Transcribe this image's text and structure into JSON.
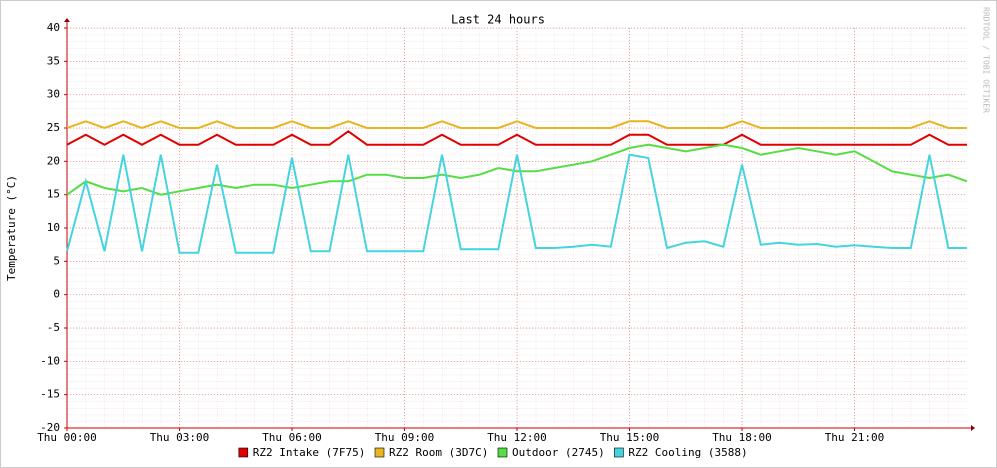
{
  "chart_data": {
    "type": "line",
    "title": "Last 24 hours",
    "y_label": "Temperature (°C)",
    "watermark": "RRDTOOL / TOBI OETIKER",
    "x": [
      0,
      0.5,
      1,
      1.5,
      2,
      2.5,
      3,
      3.5,
      4,
      4.5,
      5,
      5.5,
      6,
      6.5,
      7,
      7.5,
      8,
      8.5,
      9,
      9.5,
      10,
      10.5,
      11,
      11.5,
      12,
      12.5,
      13,
      13.5,
      14,
      14.5,
      15,
      15.5,
      16,
      16.5,
      17,
      17.5,
      18,
      18.5,
      19,
      19.5,
      20,
      20.5,
      21,
      21.5,
      22,
      22.5,
      23,
      23.5,
      24
    ],
    "xlim": [
      0,
      24
    ],
    "xticks": [
      {
        "value": 0,
        "label": "Thu 00:00"
      },
      {
        "value": 3,
        "label": "Thu 03:00"
      },
      {
        "value": 6,
        "label": "Thu 06:00"
      },
      {
        "value": 9,
        "label": "Thu 09:00"
      },
      {
        "value": 12,
        "label": "Thu 12:00"
      },
      {
        "value": 15,
        "label": "Thu 15:00"
      },
      {
        "value": 18,
        "label": "Thu 18:00"
      },
      {
        "value": 21,
        "label": "Thu 21:00"
      }
    ],
    "ylim": [
      -20,
      40
    ],
    "yticks": [
      -20,
      -15,
      -10,
      -5,
      0,
      5,
      10,
      15,
      20,
      25,
      30,
      35,
      40
    ],
    "grid": true,
    "series": [
      {
        "name": "RZ2 Intake (7F75)",
        "color": "#e00000",
        "values": [
          22.5,
          24,
          22.5,
          24,
          22.5,
          24,
          22.5,
          22.5,
          24,
          22.5,
          22.5,
          22.5,
          24,
          22.5,
          22.5,
          24.5,
          22.5,
          22.5,
          22.5,
          22.5,
          24,
          22.5,
          22.5,
          22.5,
          24,
          22.5,
          22.5,
          22.5,
          22.5,
          22.5,
          24,
          24,
          22.5,
          22.5,
          22.5,
          22.5,
          24,
          22.5,
          22.5,
          22.5,
          22.5,
          22.5,
          22.5,
          22.5,
          22.5,
          22.5,
          24,
          22.5,
          22.5
        ]
      },
      {
        "name": "RZ2 Room (3D7C)",
        "color": "#e8b420",
        "values": [
          25,
          26,
          25,
          26,
          25,
          26,
          25,
          25,
          26,
          25,
          25,
          25,
          26,
          25,
          25,
          26,
          25,
          25,
          25,
          25,
          26,
          25,
          25,
          25,
          26,
          25,
          25,
          25,
          25,
          25,
          26,
          26,
          25,
          25,
          25,
          25,
          26,
          25,
          25,
          25,
          25,
          25,
          25,
          25,
          25,
          25,
          26,
          25,
          25
        ]
      },
      {
        "name": "Outdoor (2745)",
        "color": "#55dd44",
        "values": [
          15,
          17,
          16,
          15.5,
          16,
          15,
          15.5,
          16,
          16.5,
          16,
          16.5,
          16.5,
          16,
          16.5,
          17,
          17,
          18,
          18,
          17.5,
          17.5,
          18,
          17.5,
          18,
          19,
          18.5,
          18.5,
          19,
          19.5,
          20,
          21,
          22,
          22.5,
          22,
          21.5,
          22,
          22.5,
          22,
          21,
          21.5,
          22,
          21.5,
          21,
          21.5,
          20,
          18.5,
          18,
          17.5,
          18,
          17
        ]
      },
      {
        "name": "RZ2 Cooling (3588)",
        "color": "#44d4e0",
        "values": [
          6.5,
          17,
          6.5,
          21,
          6.5,
          21,
          6.3,
          6.3,
          19.5,
          6.3,
          6.3,
          6.3,
          20.5,
          6.5,
          6.5,
          21,
          6.5,
          6.5,
          6.5,
          6.5,
          21,
          6.8,
          6.8,
          6.8,
          21,
          7,
          7,
          7.2,
          7.5,
          7.2,
          21,
          20.5,
          7,
          7.8,
          8,
          7.2,
          19.5,
          7.5,
          7.8,
          7.5,
          7.6,
          7.2,
          7.4,
          7.2,
          7,
          7,
          21,
          7,
          7
        ]
      }
    ]
  }
}
